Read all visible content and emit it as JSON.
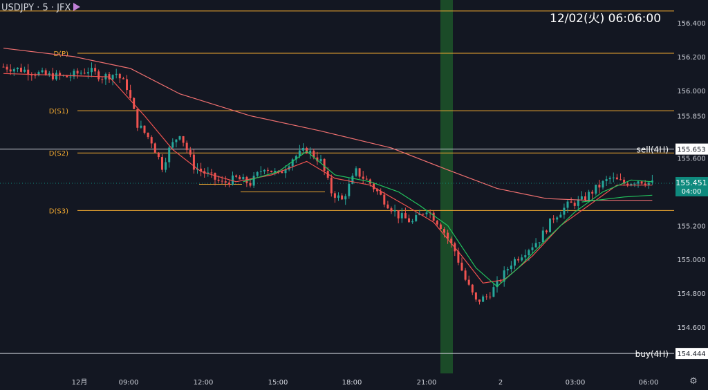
{
  "symbol_label": "USDJPY · 5 · JFX",
  "clock_label": "12/02(火)   06:06:00",
  "colors": {
    "background": "#131722",
    "up": "#26a69a",
    "down": "#ef5350",
    "pivot": "#f0a830",
    "ma_fast": "#ef5350",
    "ma_slow": "#f07070",
    "ma_green": "#22c55e",
    "white_line": "#d1d4dc",
    "highlight": "#1b4b28",
    "price_badge": "#0f8a7e"
  },
  "icons": {
    "settings": "gear-icon",
    "flag": "flag-icon"
  },
  "chart_data": {
    "type": "candlestick",
    "symbol": "USDJPY",
    "timeframe": "5",
    "y_ticks": [
      154.6,
      154.8,
      155.0,
      155.2,
      155.4,
      155.6,
      155.85,
      156.0,
      156.2,
      156.4
    ],
    "y_tick_labels": [
      "154.600",
      "154.800",
      "155.000",
      "155.200",
      "155.400",
      "155.600",
      "155.850",
      "156.000",
      "156.200",
      "156.400"
    ],
    "x_ticks": [
      "12月",
      "09:00",
      "12:00",
      "15:00",
      "18:00",
      "21:00",
      "2",
      "03:00",
      "06:00"
    ],
    "pivot_levels": [
      {
        "label": "D(P)",
        "value": 156.22
      },
      {
        "label": "D(S1)",
        "value": 155.88
      },
      {
        "label": "D(S2)",
        "value": 155.63
      },
      {
        "label": "D(S3)",
        "value": 155.29
      }
    ],
    "top_level": 156.47,
    "sell_level": {
      "label": "sell(4H)",
      "value": 155.653,
      "badge": "155.653"
    },
    "buy_level": {
      "label": "buy(4H)",
      "value": 154.444,
      "badge": "154.444"
    },
    "current_price": {
      "value": 155.451,
      "label": "155.451",
      "countdown": "04:00"
    },
    "highlight_session": {
      "from": "21:00",
      "to": "22:00"
    },
    "ohlc_anchor_path": [
      [
        0,
        156.14
      ],
      [
        6,
        156.12
      ],
      [
        12,
        156.09
      ],
      [
        18,
        156.08
      ],
      [
        24,
        156.12
      ],
      [
        28,
        156.08
      ],
      [
        32,
        156.1
      ],
      [
        35,
        156.02
      ],
      [
        38,
        155.8
      ],
      [
        42,
        155.7
      ],
      [
        45,
        155.55
      ],
      [
        47,
        155.65
      ],
      [
        50,
        155.75
      ],
      [
        54,
        155.55
      ],
      [
        58,
        155.5
      ],
      [
        62,
        155.45
      ],
      [
        66,
        155.48
      ],
      [
        70,
        155.45
      ],
      [
        74,
        155.55
      ],
      [
        78,
        155.5
      ],
      [
        82,
        155.6
      ],
      [
        86,
        155.65
      ],
      [
        90,
        155.58
      ],
      [
        93,
        155.4
      ],
      [
        96,
        155.35
      ],
      [
        100,
        155.52
      ],
      [
        104,
        155.45
      ],
      [
        108,
        155.35
      ],
      [
        112,
        155.26
      ],
      [
        116,
        155.22
      ],
      [
        120,
        155.3
      ],
      [
        124,
        155.2
      ],
      [
        128,
        155.05
      ],
      [
        131,
        154.88
      ],
      [
        134,
        154.75
      ],
      [
        137,
        154.78
      ],
      [
        140,
        154.85
      ],
      [
        144,
        154.98
      ],
      [
        148,
        155.05
      ],
      [
        152,
        155.12
      ],
      [
        156,
        155.25
      ],
      [
        160,
        155.32
      ],
      [
        164,
        155.35
      ],
      [
        168,
        155.42
      ],
      [
        172,
        155.48
      ],
      [
        176,
        155.45
      ],
      [
        180,
        155.47
      ],
      [
        184,
        155.45
      ]
    ],
    "ma_fast_path": [
      [
        0,
        156.1
      ],
      [
        30,
        156.08
      ],
      [
        40,
        155.85
      ],
      [
        48,
        155.65
      ],
      [
        56,
        155.52
      ],
      [
        66,
        155.46
      ],
      [
        76,
        155.5
      ],
      [
        86,
        155.58
      ],
      [
        94,
        155.48
      ],
      [
        104,
        155.44
      ],
      [
        114,
        155.32
      ],
      [
        122,
        155.22
      ],
      [
        130,
        155.02
      ],
      [
        136,
        154.86
      ],
      [
        142,
        154.88
      ],
      [
        150,
        155.02
      ],
      [
        158,
        155.2
      ],
      [
        166,
        155.32
      ],
      [
        174,
        155.44
      ],
      [
        184,
        155.44
      ]
    ],
    "ma_slow_path": [
      [
        0,
        156.25
      ],
      [
        20,
        156.2
      ],
      [
        36,
        156.13
      ],
      [
        50,
        155.98
      ],
      [
        70,
        155.85
      ],
      [
        90,
        155.76
      ],
      [
        110,
        155.66
      ],
      [
        126,
        155.53
      ],
      [
        140,
        155.42
      ],
      [
        154,
        155.36
      ],
      [
        166,
        155.35
      ],
      [
        184,
        155.35
      ]
    ],
    "ma_green_path": [
      [
        68,
        155.46
      ],
      [
        78,
        155.52
      ],
      [
        86,
        155.64
      ],
      [
        94,
        155.5
      ],
      [
        104,
        155.46
      ],
      [
        112,
        155.4
      ],
      [
        118,
        155.32
      ],
      [
        126,
        155.2
      ],
      [
        134,
        154.95
      ],
      [
        140,
        154.84
      ],
      [
        146,
        154.95
      ],
      [
        154,
        155.12
      ],
      [
        162,
        155.28
      ],
      [
        170,
        155.4
      ],
      [
        178,
        155.47
      ],
      [
        184,
        155.46
      ]
    ],
    "ma_long_green_path": [
      [
        164,
        155.34
      ],
      [
        176,
        155.37
      ],
      [
        184,
        155.38
      ]
    ]
  }
}
